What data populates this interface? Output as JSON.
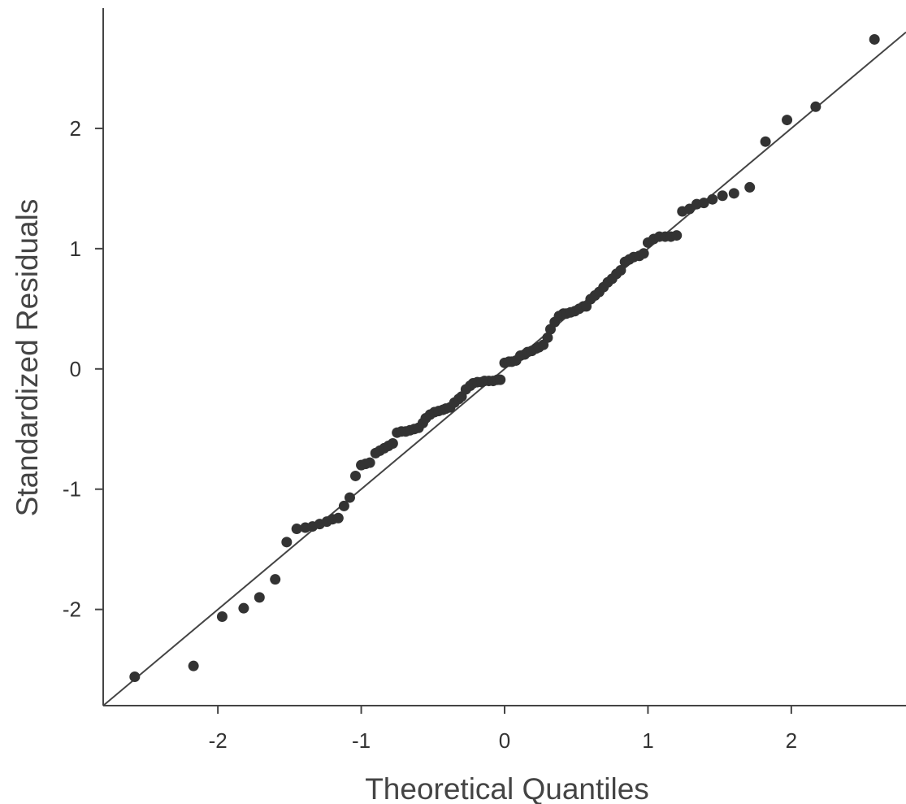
{
  "chart_data": {
    "type": "scatter",
    "title": "",
    "xlabel": "Theoretical Quantiles",
    "ylabel": "Standardized Residuals",
    "xlim": [
      -2.8,
      2.8
    ],
    "ylim": [
      -2.8,
      3.0
    ],
    "x_ticks": [
      -2,
      -1,
      0,
      1,
      2
    ],
    "x_tick_labels": [
      "-2",
      "-1",
      "0",
      "1",
      "2"
    ],
    "y_ticks": [
      -2,
      -1,
      0,
      1,
      2
    ],
    "y_tick_labels": [
      "-2",
      "-1",
      "0",
      "1",
      "2"
    ],
    "grid": false,
    "legend": "none",
    "colors": {
      "points": "#333333",
      "line": "#444444",
      "axis": "#444444"
    },
    "reference_line": {
      "slope": 1.0,
      "intercept": 0.0
    },
    "series": [
      {
        "x": [
          -2.58,
          -2.17,
          -1.97,
          -1.82,
          -1.71,
          -1.6,
          -1.52,
          -1.45,
          -1.39,
          -1.34,
          -1.29,
          -1.24,
          -1.2,
          -1.16,
          -1.12,
          -1.08,
          -1.04,
          -1.0,
          -0.97,
          -0.94,
          -0.9,
          -0.87,
          -0.84,
          -0.81,
          -0.78,
          -0.75,
          -0.72,
          -0.69,
          -0.66,
          -0.63,
          -0.6,
          -0.57,
          -0.55,
          -0.52,
          -0.49,
          -0.46,
          -0.43,
          -0.41,
          -0.38,
          -0.35,
          -0.32,
          -0.3,
          -0.27,
          -0.24,
          -0.22,
          -0.19,
          -0.16,
          -0.14,
          -0.11,
          -0.08,
          -0.05,
          -0.03,
          0.0,
          0.03,
          0.05,
          0.08,
          0.11,
          0.14,
          0.16,
          0.19,
          0.22,
          0.24,
          0.27,
          0.3,
          0.32,
          0.35,
          0.38,
          0.41,
          0.43,
          0.46,
          0.49,
          0.52,
          0.55,
          0.57,
          0.6,
          0.63,
          0.66,
          0.69,
          0.72,
          0.75,
          0.78,
          0.81,
          0.84,
          0.87,
          0.9,
          0.94,
          0.97,
          1.0,
          1.04,
          1.08,
          1.12,
          1.16,
          1.2,
          1.24,
          1.29,
          1.34,
          1.39,
          1.45,
          1.52,
          1.6,
          1.71,
          1.82,
          1.97,
          2.17,
          2.58
        ],
        "y": [
          -2.56,
          -2.47,
          -2.06,
          -1.99,
          -1.9,
          -1.75,
          -1.44,
          -1.33,
          -1.32,
          -1.31,
          -1.29,
          -1.27,
          -1.25,
          -1.24,
          -1.14,
          -1.07,
          -0.89,
          -0.8,
          -0.79,
          -0.78,
          -0.7,
          -0.68,
          -0.66,
          -0.64,
          -0.62,
          -0.53,
          -0.52,
          -0.52,
          -0.51,
          -0.5,
          -0.49,
          -0.45,
          -0.41,
          -0.38,
          -0.36,
          -0.35,
          -0.34,
          -0.33,
          -0.32,
          -0.28,
          -0.25,
          -0.23,
          -0.17,
          -0.14,
          -0.12,
          -0.11,
          -0.11,
          -0.1,
          -0.1,
          -0.1,
          -0.09,
          -0.09,
          0.05,
          0.06,
          0.06,
          0.07,
          0.11,
          0.12,
          0.14,
          0.15,
          0.17,
          0.18,
          0.2,
          0.26,
          0.33,
          0.39,
          0.44,
          0.46,
          0.46,
          0.47,
          0.48,
          0.5,
          0.52,
          0.52,
          0.58,
          0.61,
          0.64,
          0.68,
          0.72,
          0.75,
          0.79,
          0.82,
          0.89,
          0.91,
          0.93,
          0.94,
          0.96,
          1.05,
          1.08,
          1.1,
          1.1,
          1.1,
          1.11,
          1.31,
          1.33,
          1.37,
          1.38,
          1.41,
          1.44,
          1.46,
          1.51,
          1.89,
          2.07,
          2.18,
          2.74
        ]
      }
    ]
  }
}
